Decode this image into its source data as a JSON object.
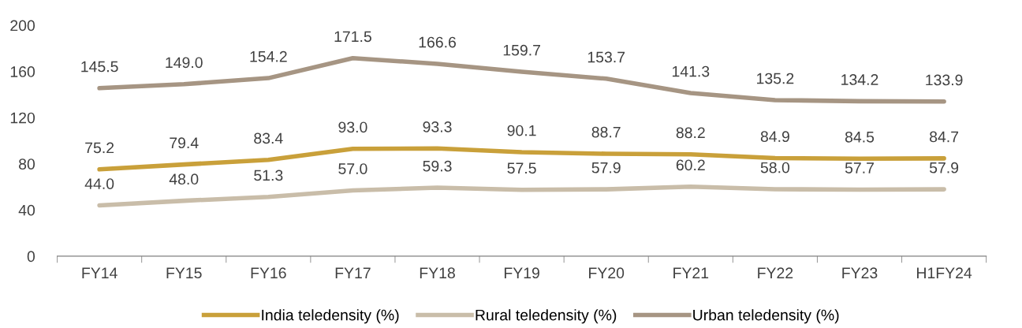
{
  "chart_data": {
    "type": "line",
    "categories": [
      "FY14",
      "FY15",
      "FY16",
      "FY17",
      "FY18",
      "FY19",
      "FY20",
      "FY21",
      "FY22",
      "FY23",
      "H1FY24"
    ],
    "series": [
      {
        "name": "India teledensity (%)",
        "color": "#c9a03a",
        "values": [
          75.2,
          79.4,
          83.4,
          93.0,
          93.3,
          90.1,
          88.7,
          88.2,
          84.9,
          84.5,
          84.7
        ],
        "value_labels": [
          "75.2",
          "79.4",
          "83.4",
          "93.0",
          "93.3",
          "90.1",
          "88.7",
          "88.2",
          "84.9",
          "84.5",
          "84.7"
        ]
      },
      {
        "name": "Rural teledensity (%)",
        "color": "#c9bda9",
        "values": [
          44.0,
          48.0,
          51.3,
          57.0,
          59.3,
          57.5,
          57.9,
          60.2,
          58.0,
          57.7,
          57.9
        ],
        "value_labels": [
          "44.0",
          "48.0",
          "51.3",
          "57.0",
          "59.3",
          "57.5",
          "57.9",
          "60.2",
          "58.0",
          "57.7",
          "57.9"
        ]
      },
      {
        "name": "Urban teledensity (%)",
        "color": "#a69583",
        "values": [
          145.5,
          149.0,
          154.2,
          171.5,
          166.6,
          159.7,
          153.7,
          141.3,
          135.2,
          134.2,
          133.9
        ],
        "value_labels": [
          "145.5",
          "149.0",
          "154.2",
          "171.5",
          "166.6",
          "159.7",
          "153.7",
          "141.3",
          "135.2",
          "134.2",
          "133.9"
        ]
      }
    ],
    "ylim": [
      0,
      200
    ],
    "yticks": [
      0,
      40,
      80,
      120,
      160,
      200
    ],
    "grid": false,
    "legend": "bottom",
    "marker": "none",
    "line_style": "solid"
  }
}
